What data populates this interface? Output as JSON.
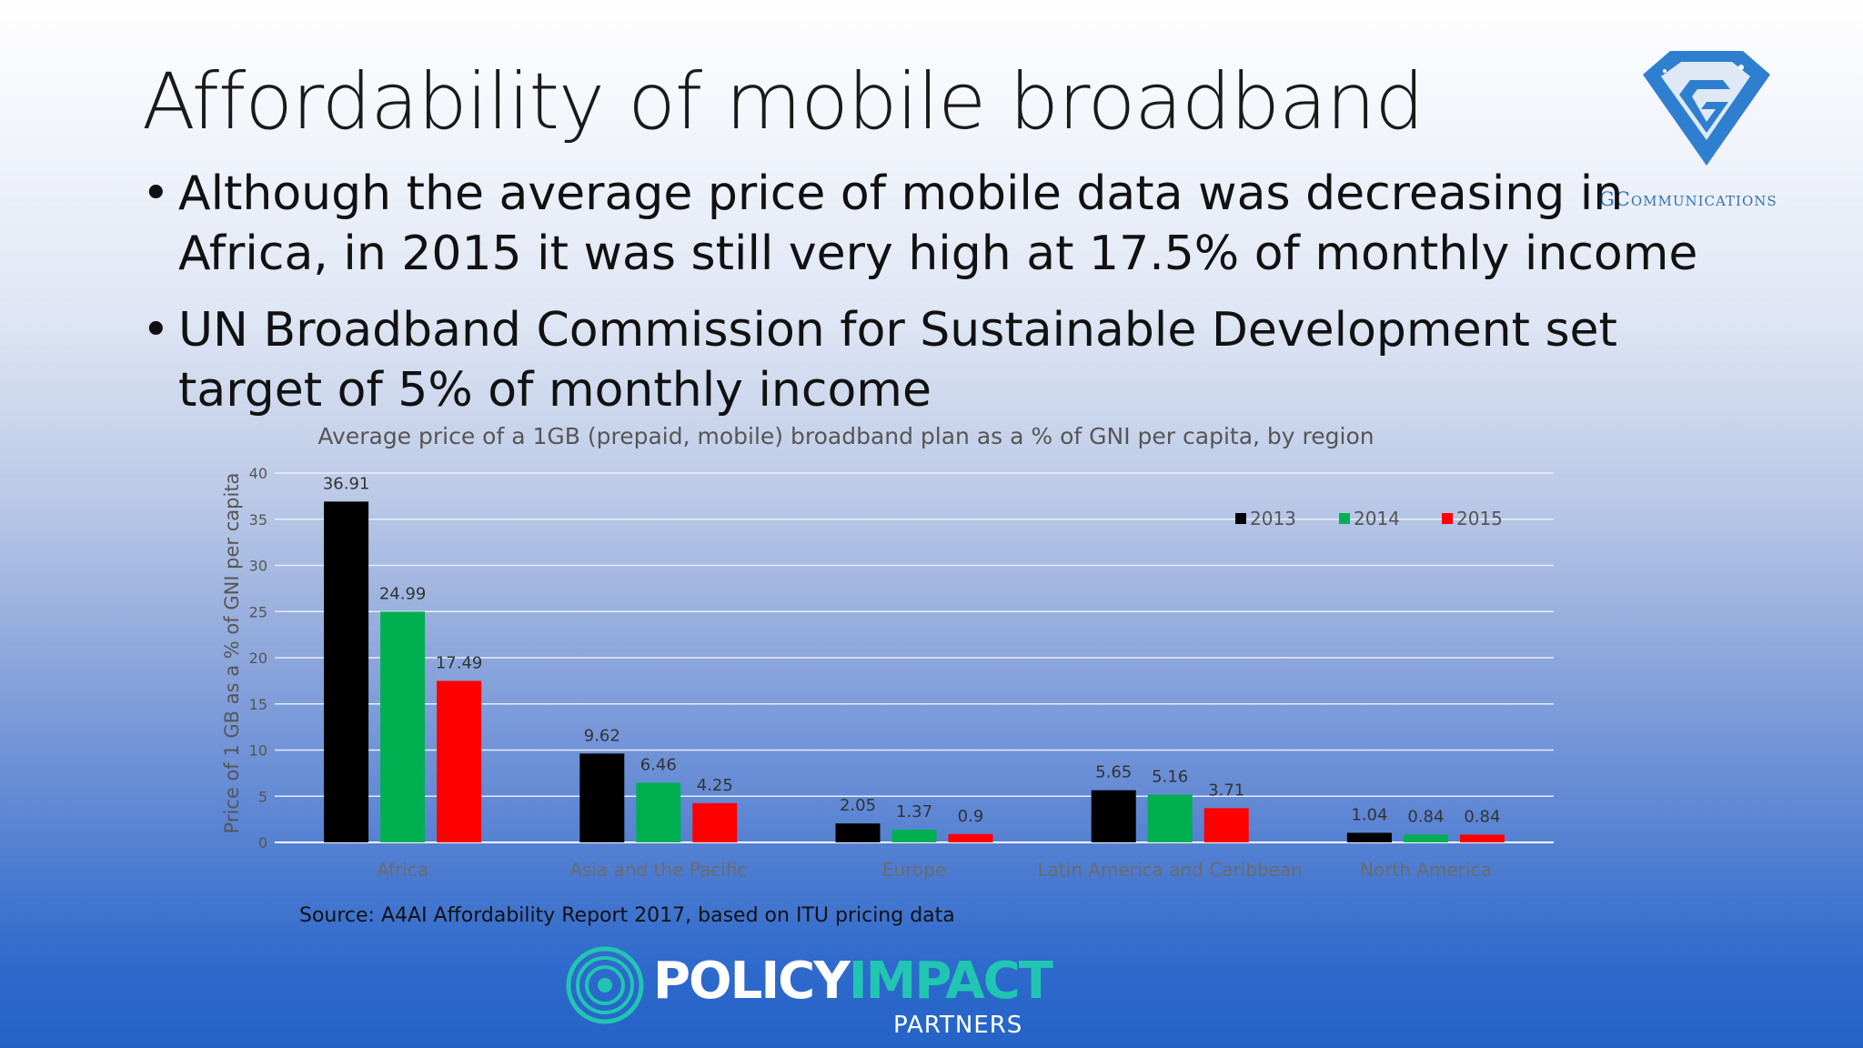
{
  "slide": {
    "title": "Affordability of mobile broadband",
    "bullets": [
      "Although the average price of mobile data was decreasing in Africa, in 2015 it was still very high at 17.5% of monthly income",
      "UN Broadband Commission for Sustainable Development set target of 5% of monthly income"
    ],
    "bullet_marker": "•"
  },
  "logos": {
    "top_right_text": "GCommunications",
    "policy_word_1": "POLICY",
    "policy_word_2": "IMPACT",
    "policy_word_3": "PARTNERS"
  },
  "source": "Source:  A4AI Affordability Report 2017, based on ITU pricing data",
  "colors": {
    "series_2013": "#000000",
    "series_2014": "#00b050",
    "series_2015": "#ff0000",
    "pip_teal": "#20c6b2",
    "g_blue": "#2f7fd0"
  },
  "chart_data": {
    "type": "bar",
    "title": "Average price of a 1GB (prepaid, mobile) broadband plan as a % of GNI per capita, by region",
    "xlabel": "",
    "ylabel": "Price of 1 GB as a % of GNI per capita",
    "ylim": [
      0,
      40
    ],
    "yticks": [
      0,
      5,
      10,
      15,
      20,
      25,
      30,
      35,
      40
    ],
    "categories": [
      "Africa",
      "Asia and the Pacific",
      "Europe",
      "Latin America and Caribbean",
      "North America"
    ],
    "series": [
      {
        "name": "2013",
        "color": "#000000",
        "values": [
          36.91,
          9.62,
          2.05,
          5.65,
          1.04
        ],
        "labels": [
          "36.91",
          "9.62",
          "2.05",
          "5.65",
          "1.04"
        ]
      },
      {
        "name": "2014",
        "color": "#00b050",
        "values": [
          24.99,
          6.46,
          1.37,
          5.16,
          0.84
        ],
        "labels": [
          "24.99",
          "6.46",
          "1.37",
          "5.16",
          "0.84"
        ]
      },
      {
        "name": "2015",
        "color": "#ff0000",
        "values": [
          17.49,
          4.25,
          0.9,
          3.71,
          0.84
        ],
        "labels": [
          "17.49",
          "4.25",
          "0.9",
          "3.71",
          "0.84"
        ]
      }
    ],
    "legend_position": "top-right",
    "grid": true
  }
}
